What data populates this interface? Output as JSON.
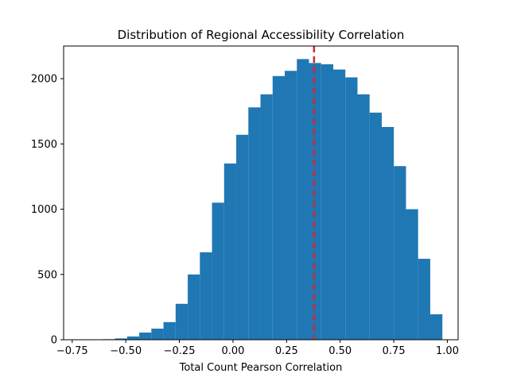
{
  "chart_data": {
    "type": "bar",
    "title": "Distribution of Regional Accessibility Correlation",
    "xlabel": "Total Count Pearson Correlation",
    "ylabel": "",
    "xlim": [
      -0.79,
      1.05
    ],
    "ylim": [
      0,
      2250
    ],
    "xticks": [
      -0.75,
      -0.5,
      -0.25,
      0.0,
      0.25,
      0.5,
      0.75,
      1.0
    ],
    "xtick_labels": [
      "−0.75",
      "−0.50",
      "−0.25",
      "0.00",
      "0.25",
      "0.50",
      "0.75",
      "1.00"
    ],
    "yticks": [
      0,
      500,
      1000,
      1500,
      2000
    ],
    "ytick_labels": [
      "0",
      "500",
      "1000",
      "1500",
      "2000"
    ],
    "bin_edges": [
      -0.72,
      -0.6634,
      -0.6069,
      -0.5503,
      -0.4938,
      -0.4372,
      -0.3807,
      -0.3241,
      -0.2676,
      -0.211,
      -0.1545,
      -0.0979,
      -0.0414,
      0.0152,
      0.0717,
      0.1283,
      0.1848,
      0.2414,
      0.2979,
      0.3545,
      0.411,
      0.4676,
      0.5241,
      0.5807,
      0.6372,
      0.6938,
      0.7503,
      0.8069,
      0.8634,
      0.92,
      0.9766
    ],
    "values": [
      1,
      2,
      4,
      10,
      25,
      55,
      85,
      135,
      275,
      500,
      670,
      1050,
      1350,
      1570,
      1780,
      1880,
      2020,
      2060,
      2150,
      2120,
      2110,
      2070,
      2010,
      1880,
      1740,
      1630,
      1330,
      1000,
      620,
      195
    ],
    "bar_color": "#1f77b4",
    "reference_line": {
      "x": 0.378,
      "color": "#d62728",
      "style": "dashed"
    },
    "grid": false,
    "legend": "none"
  }
}
